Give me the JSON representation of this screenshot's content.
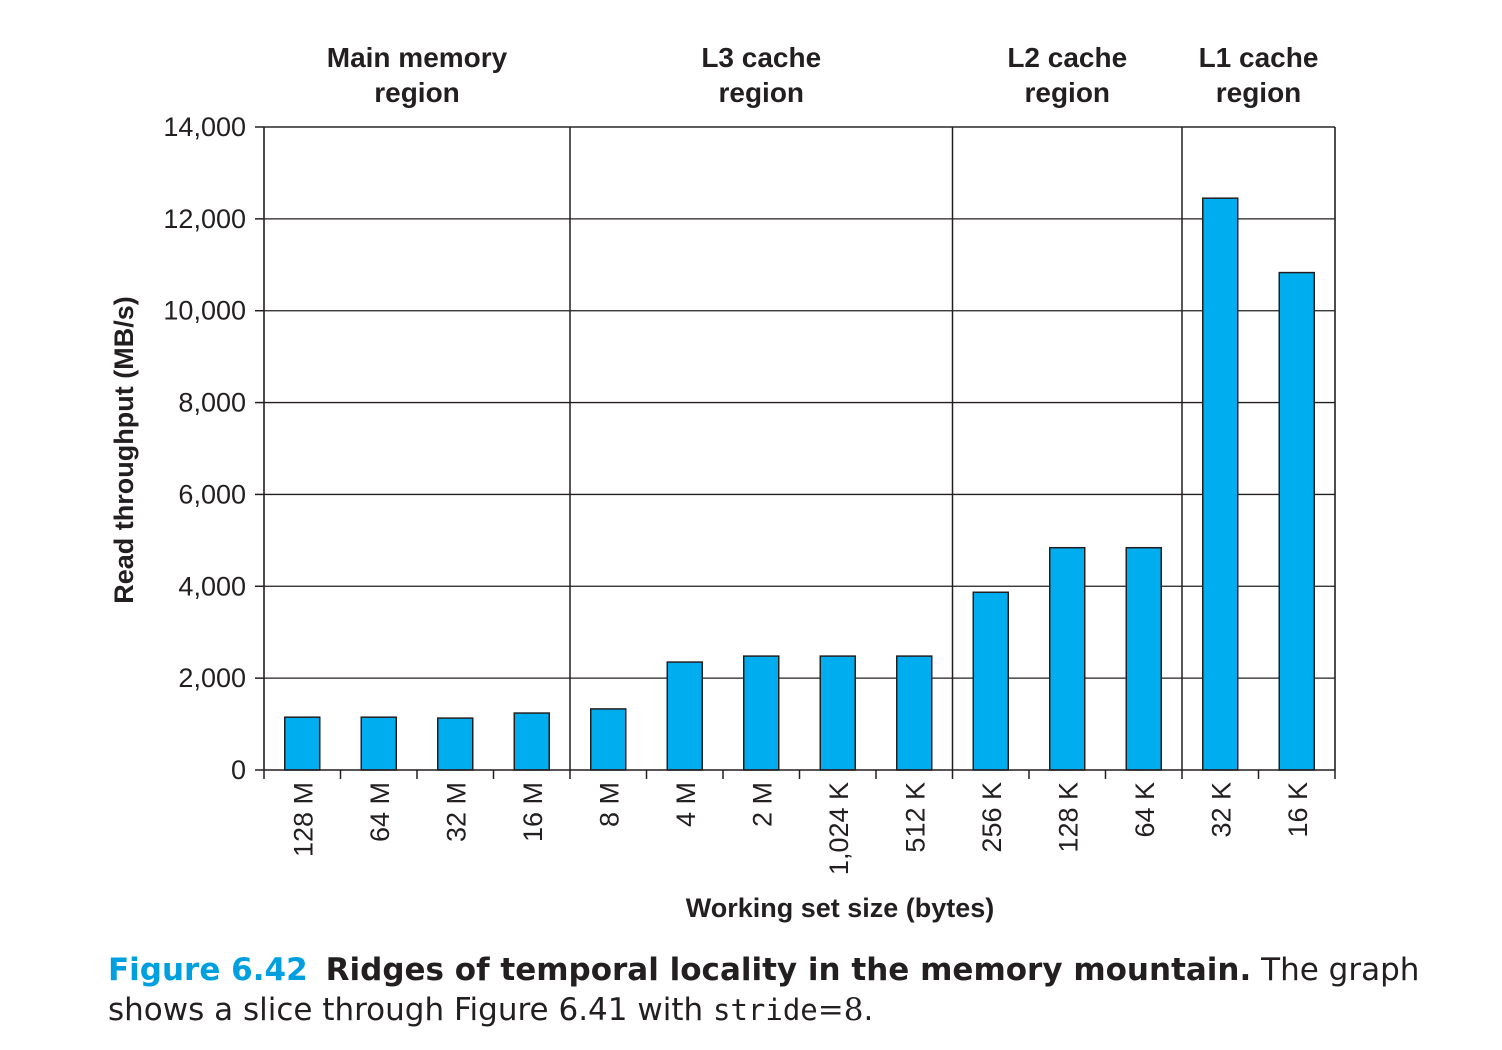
{
  "chart_data": {
    "type": "bar",
    "xlabel": "Working set size (bytes)",
    "ylabel": "Read throughput (MB/s)",
    "ylim": [
      0,
      14000
    ],
    "yticks": [
      "0",
      "2,000",
      "4,000",
      "6,000",
      "8,000",
      "10,000",
      "12,000",
      "14,000"
    ],
    "ytick_values": [
      0,
      2000,
      4000,
      6000,
      8000,
      10000,
      12000,
      14000
    ],
    "categories": [
      "128 M",
      "64 M",
      "32 M",
      "16 M",
      "8 M",
      "4 M",
      "2 M",
      "1,024 K",
      "512 K",
      "256 K",
      "128 K",
      "64 K",
      "32 K",
      "16 K"
    ],
    "values": [
      1150,
      1150,
      1130,
      1240,
      1330,
      2350,
      2480,
      2480,
      2480,
      3870,
      4840,
      4840,
      12450,
      10830
    ],
    "bar_color": "#00aeef",
    "grid": true,
    "regions": [
      {
        "line1": "Main memory",
        "line2": "region",
        "start": 0,
        "end": 4
      },
      {
        "line1": "L3 cache",
        "line2": "region",
        "start": 4,
        "end": 9
      },
      {
        "line1": "L2 cache",
        "line2": "region",
        "start": 9,
        "end": 12
      },
      {
        "line1": "L1 cache",
        "line2": "region",
        "start": 12,
        "end": 14
      }
    ]
  },
  "caption": {
    "label": "Figure 6.42",
    "title": "Ridges of temporal locality in the memory mountain.",
    "text_before": "The graph shows a slice through Figure 6.41 with",
    "code": "stride",
    "equals": "=",
    "value": "8",
    "end": "."
  }
}
